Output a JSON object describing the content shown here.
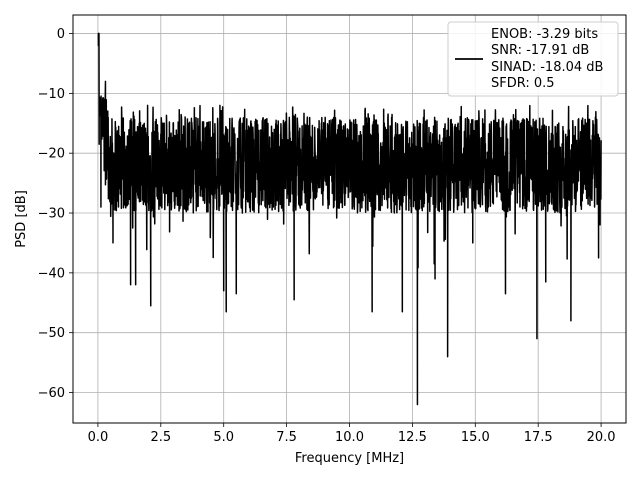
{
  "chart_data": {
    "type": "line",
    "title": "",
    "xlabel": "Frequency [MHz]",
    "ylabel": "PSD [dB]",
    "xlim": [
      -0.99,
      20.99
    ],
    "ylim": [
      -65.1,
      3.1
    ],
    "xticks": [
      0.0,
      2.5,
      5.0,
      7.5,
      10.0,
      12.5,
      15.0,
      17.5,
      20.0
    ],
    "xtick_labels": [
      "0.0",
      "2.5",
      "5.0",
      "7.5",
      "10.0",
      "12.5",
      "15.0",
      "17.5",
      "20.0"
    ],
    "yticks": [
      0,
      -10,
      -20,
      -30,
      -40,
      -50,
      -60
    ],
    "ytick_labels": [
      "0",
      "−10",
      "−20",
      "−30",
      "−40",
      "−50",
      "−60"
    ],
    "grid": true,
    "legend_position": "upper-right",
    "series": [
      {
        "color": "#000000",
        "base_level_db": -22,
        "spikes_db": [
          [
            0.0,
            0.0
          ],
          [
            0.02,
            -2.0
          ],
          [
            0.05,
            -18.5
          ],
          [
            0.12,
            -29.0
          ],
          [
            0.3,
            -8.0
          ],
          [
            0.6,
            -35.0
          ],
          [
            1.3,
            -42.0
          ],
          [
            1.5,
            -42.0
          ],
          [
            2.1,
            -45.5
          ],
          [
            4.85,
            -12.0
          ],
          [
            5.0,
            -43.0
          ],
          [
            5.1,
            -46.5
          ],
          [
            5.5,
            -43.5
          ],
          [
            7.8,
            -44.5
          ],
          [
            10.9,
            -46.5
          ],
          [
            12.1,
            -46.5
          ],
          [
            12.7,
            -62.0
          ],
          [
            13.4,
            -41.0
          ],
          [
            13.9,
            -54.0
          ],
          [
            14.9,
            -35.0
          ],
          [
            16.2,
            -43.5
          ],
          [
            17.45,
            -51.0
          ],
          [
            17.8,
            -41.5
          ],
          [
            18.8,
            -48.0
          ],
          [
            19.9,
            -37.5
          ]
        ]
      }
    ],
    "legend": {
      "entries": [
        "ENOB: -3.29 bits",
        "SNR: -17.91 dB",
        "SINAD: -18.04 dB",
        "SFDR: 0.5"
      ]
    }
  }
}
